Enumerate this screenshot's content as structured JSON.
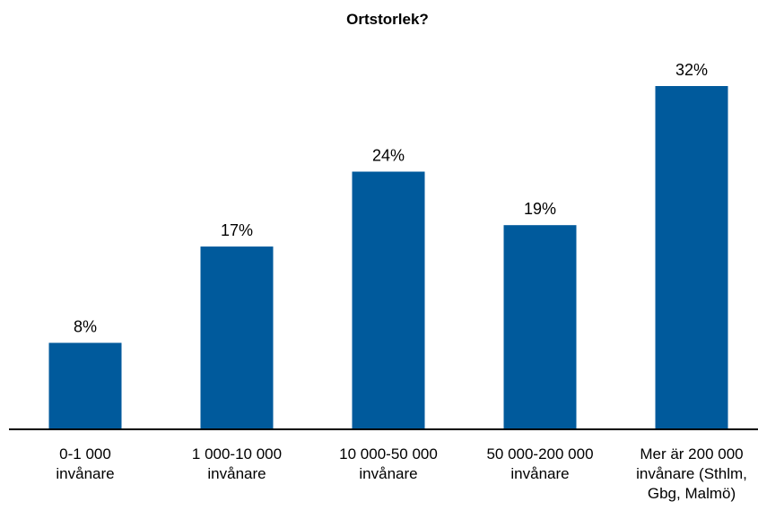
{
  "chart_data": {
    "type": "bar",
    "title": "Ortstorlek?",
    "xlabel": "",
    "ylabel": "",
    "categories": [
      [
        "0-1 000",
        "invånare"
      ],
      [
        "1 000-10 000",
        "invånare"
      ],
      [
        "10 000-50 000",
        "invånare"
      ],
      [
        "50 000-200 000",
        "invånare"
      ],
      [
        "Mer är 200 000",
        "invånare (Sthlm,",
        "Gbg, Malmö)"
      ]
    ],
    "values": [
      8,
      17,
      24,
      19,
      32
    ],
    "value_labels": [
      "8%",
      "17%",
      "24%",
      "19%",
      "32%"
    ],
    "unit": "%",
    "ylim": [
      0,
      32
    ],
    "grid": false,
    "legend": "none",
    "bar_color": "#005A9C",
    "axis_color": "#000000"
  }
}
